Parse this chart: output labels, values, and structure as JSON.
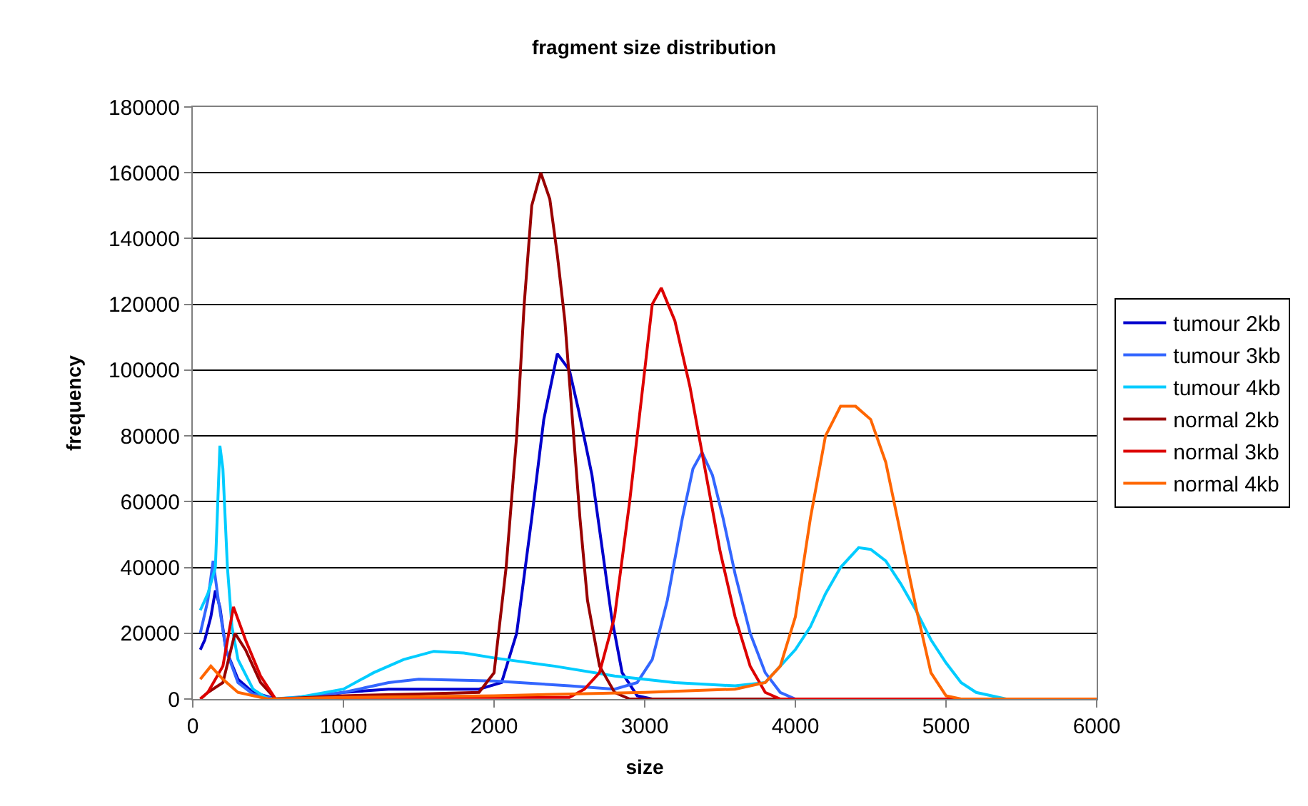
{
  "chart_data": {
    "type": "line",
    "title": "fragment size distribution",
    "xlabel": "size",
    "ylabel": "frequency",
    "xlim": [
      0,
      6000
    ],
    "xticks": [
      0,
      1000,
      2000,
      3000,
      4000,
      5000,
      6000
    ],
    "ylim": [
      0,
      180000
    ],
    "yticks": [
      0,
      20000,
      40000,
      60000,
      80000,
      100000,
      120000,
      140000,
      160000,
      180000
    ],
    "grid": "y",
    "legend": "right",
    "marker": "none",
    "line_style": "solid",
    "series": [
      {
        "name": "tumour 2kb",
        "color": "#0000cc",
        "x": [
          50,
          80,
          120,
          150,
          180,
          220,
          300,
          400,
          550,
          800,
          1000,
          1300,
          1600,
          1900,
          2050,
          2150,
          2250,
          2330,
          2420,
          2500,
          2560,
          2650,
          2720,
          2780,
          2850,
          2950,
          3050,
          4000,
          6000
        ],
        "values": [
          15000,
          18000,
          25000,
          33000,
          28000,
          15000,
          6000,
          2000,
          0,
          500,
          2000,
          3000,
          3000,
          3000,
          5000,
          20000,
          55000,
          85000,
          105000,
          100000,
          88000,
          68000,
          45000,
          25000,
          8000,
          1000,
          0,
          0,
          0
        ]
      },
      {
        "name": "tumour 3kb",
        "color": "#3366ff",
        "x": [
          50,
          100,
          135,
          170,
          220,
          300,
          400,
          550,
          800,
          1000,
          1300,
          1500,
          2000,
          2500,
          2800,
          2950,
          3050,
          3150,
          3250,
          3320,
          3380,
          3450,
          3520,
          3600,
          3700,
          3800,
          3900,
          4000,
          6000
        ],
        "values": [
          20000,
          30000,
          42000,
          30000,
          15000,
          5000,
          1500,
          0,
          1000,
          2000,
          5000,
          6000,
          5500,
          4000,
          3000,
          5000,
          12000,
          30000,
          55000,
          70000,
          75000,
          68000,
          55000,
          38000,
          20000,
          8000,
          2000,
          0,
          0
        ]
      },
      {
        "name": "tumour 4kb",
        "color": "#00ccff",
        "x": [
          50,
          100,
          150,
          180,
          200,
          230,
          260,
          300,
          400,
          500,
          700,
          1000,
          1200,
          1400,
          1600,
          1800,
          2000,
          2400,
          2800,
          3200,
          3600,
          3800,
          4000,
          4100,
          4200,
          4300,
          4420,
          4500,
          4600,
          4700,
          4800,
          4900,
          5000,
          5100,
          5200,
          5400,
          6000
        ],
        "values": [
          27000,
          32000,
          40000,
          77000,
          70000,
          40000,
          22000,
          12000,
          3000,
          0,
          500,
          3000,
          8000,
          12000,
          14500,
          14000,
          12500,
          10000,
          7000,
          5000,
          4000,
          5000,
          15000,
          22000,
          32000,
          40000,
          46000,
          45500,
          42000,
          35000,
          27000,
          18000,
          11000,
          5000,
          2000,
          0,
          0
        ]
      },
      {
        "name": "normal 2kb",
        "color": "#990000",
        "x": [
          50,
          100,
          200,
          280,
          350,
          450,
          550,
          1000,
          1500,
          1900,
          2000,
          2080,
          2150,
          2200,
          2250,
          2310,
          2370,
          2420,
          2470,
          2520,
          2570,
          2620,
          2700,
          2800,
          2900,
          6000
        ],
        "values": [
          0,
          2000,
          5000,
          20000,
          15000,
          5000,
          0,
          1000,
          1500,
          2000,
          8000,
          40000,
          80000,
          120000,
          150000,
          160000,
          152000,
          135000,
          115000,
          85000,
          55000,
          30000,
          10000,
          2000,
          0,
          0
        ]
      },
      {
        "name": "normal 3kb",
        "color": "#dd0000",
        "x": [
          50,
          100,
          200,
          270,
          350,
          450,
          550,
          1000,
          2500,
          2600,
          2700,
          2800,
          2900,
          3000,
          3050,
          3110,
          3200,
          3300,
          3400,
          3500,
          3600,
          3700,
          3800,
          3900,
          6000
        ],
        "values": [
          0,
          2000,
          10000,
          28000,
          18000,
          7000,
          0,
          500,
          500,
          3000,
          8000,
          25000,
          60000,
          100000,
          120000,
          125000,
          115000,
          95000,
          70000,
          45000,
          25000,
          10000,
          2000,
          0,
          0
        ]
      },
      {
        "name": "normal 4kb",
        "color": "#ff6600",
        "x": [
          50,
          120,
          200,
          300,
          500,
          1000,
          2000,
          3000,
          3600,
          3800,
          3900,
          4000,
          4100,
          4200,
          4300,
          4400,
          4500,
          4600,
          4700,
          4800,
          4900,
          5000,
          5100,
          6000
        ],
        "values": [
          6000,
          10000,
          6000,
          2000,
          0,
          500,
          1000,
          2000,
          3000,
          5000,
          10000,
          25000,
          55000,
          80000,
          89000,
          89000,
          85000,
          72000,
          50000,
          28000,
          8000,
          1000,
          0,
          0
        ]
      }
    ]
  }
}
